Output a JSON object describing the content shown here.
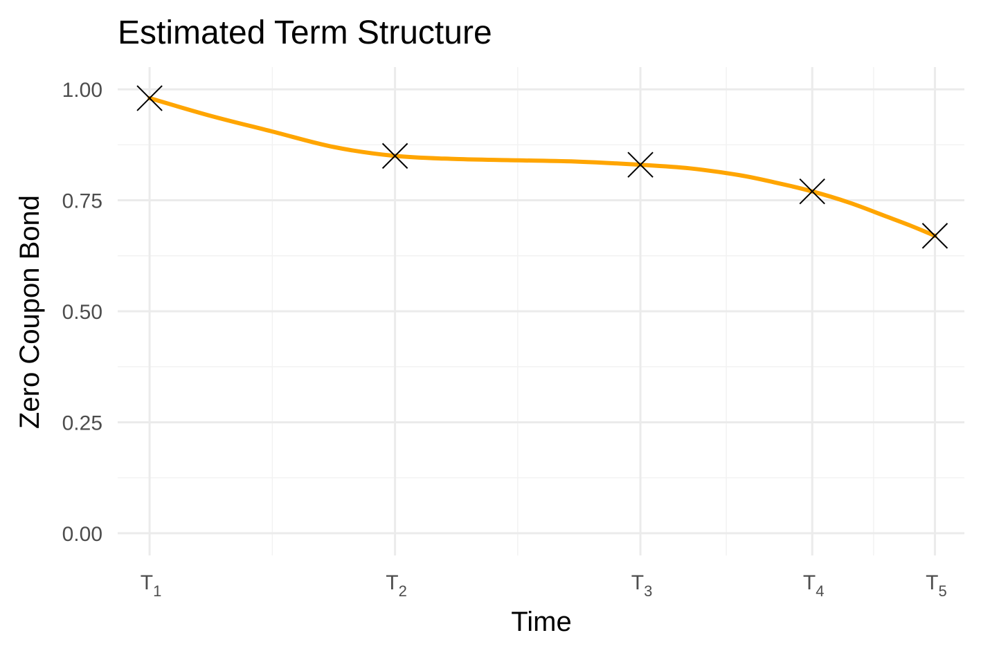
{
  "chart_data": {
    "type": "line",
    "title": "Estimated Term Structure",
    "xlabel": "Time",
    "ylabel": "Zero Coupon Bond",
    "x_ticks": [
      {
        "value": 1,
        "base": "T",
        "sub": "1"
      },
      {
        "value": 2,
        "base": "T",
        "sub": "2"
      },
      {
        "value": 3,
        "base": "T",
        "sub": "3"
      },
      {
        "value": 3.7,
        "base": "T",
        "sub": "4"
      },
      {
        "value": 4.2,
        "base": "T",
        "sub": "5"
      }
    ],
    "x_minor": [
      1.5,
      2.5,
      3.35,
      3.95
    ],
    "xlim": [
      0.87,
      4.32
    ],
    "ylim": [
      -0.05,
      1.05
    ],
    "y_ticks": [
      "0.00",
      "0.25",
      "0.50",
      "0.75",
      "1.00"
    ],
    "y_minor": [
      0.125,
      0.375,
      0.625,
      0.875
    ],
    "grid": true,
    "points": {
      "x": [
        1,
        2,
        3,
        3.7,
        4.2
      ],
      "y": [
        0.98,
        0.85,
        0.83,
        0.77,
        0.67
      ]
    },
    "curve": {
      "x": [
        1,
        1.25,
        1.5,
        1.75,
        2,
        2.25,
        2.5,
        2.75,
        3,
        3.2,
        3.4,
        3.55,
        3.7,
        3.85,
        4.0,
        4.1,
        4.2
      ],
      "y": [
        0.98,
        0.94,
        0.905,
        0.87,
        0.85,
        0.843,
        0.84,
        0.837,
        0.83,
        0.822,
        0.807,
        0.79,
        0.77,
        0.745,
        0.714,
        0.693,
        0.67
      ]
    },
    "colors": {
      "line": "#FFA500",
      "marker": "#000000"
    }
  }
}
